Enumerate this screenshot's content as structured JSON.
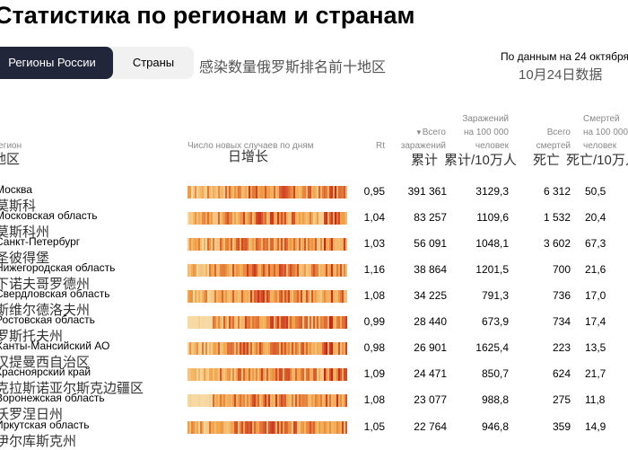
{
  "title": "Статистика по регионам и странам",
  "tabs": [
    {
      "label": "Регионы России",
      "active": true
    },
    {
      "label": "Страны",
      "active": false
    }
  ],
  "subtitle_zh": "感染数量俄罗斯排名前十地区",
  "as_of": {
    "ru": "По данным на 24 октября",
    "zh": "10月24日数据"
  },
  "columns": {
    "region_ru": "Регион",
    "region_zh": "地区",
    "daily_ru": "Число новых случаев по дням",
    "daily_zh": "日增长",
    "rt": "Rt",
    "total_ru": [
      "Всего",
      "заражений"
    ],
    "total_zh": "累计",
    "per100k_ru": [
      "Заражений",
      "на 100 000",
      "человек"
    ],
    "per100k_zh": "累计/10万人",
    "deaths_ru": [
      "Всего",
      "смертей"
    ],
    "deaths_zh": "死亡",
    "deaths_per100k_ru": [
      "Смертей",
      "на 100 000",
      "человек"
    ],
    "deaths_per100k_zh": "死亡/10万人"
  },
  "colors": {
    "heat_low": "#f7d9a3",
    "heat_mid": "#f2a54a",
    "heat_high": "#c6231c",
    "tab_active_bg": "#22263a",
    "tab_bg": "#f1f1f1"
  },
  "rows": [
    {
      "ru": "Москва",
      "zh": "莫斯科",
      "rt": "0,95",
      "total": "391 361",
      "per100k": "3129,3",
      "deaths": "6 312",
      "deaths_per100k": "50,5"
    },
    {
      "ru": "Московская область",
      "zh": "莫斯科州",
      "rt": "1,04",
      "total": "83 257",
      "per100k": "1109,6",
      "deaths": "1 532",
      "deaths_per100k": "20,4"
    },
    {
      "ru": "Санкт-Петербург",
      "zh": "圣彼得堡",
      "rt": "1,03",
      "total": "56 091",
      "per100k": "1048,1",
      "deaths": "3 602",
      "deaths_per100k": "67,3"
    },
    {
      "ru": "Нижегородская область",
      "zh": "下诺夫哥罗德州",
      "rt": "1,16",
      "total": "38 864",
      "per100k": "1201,5",
      "deaths": "700",
      "deaths_per100k": "21,6"
    },
    {
      "ru": "Свердловская область",
      "zh": "斯维尔德洛夫州",
      "rt": "1,08",
      "total": "34 225",
      "per100k": "791,3",
      "deaths": "736",
      "deaths_per100k": "17,0"
    },
    {
      "ru": "Ростовская область",
      "zh": "罗斯托夫州",
      "rt": "0,99",
      "total": "28 440",
      "per100k": "673,9",
      "deaths": "734",
      "deaths_per100k": "17,4"
    },
    {
      "ru": "Ханты-Мансийский АО",
      "zh": "汉提曼西自治区",
      "rt": "0,98",
      "total": "26 901",
      "per100k": "1625,4",
      "deaths": "223",
      "deaths_per100k": "13,5"
    },
    {
      "ru": "Красноярский край",
      "zh": "克拉斯诺亚尔斯克边疆区",
      "rt": "1,09",
      "total": "24 471",
      "per100k": "850,7",
      "deaths": "624",
      "deaths_per100k": "21,7"
    },
    {
      "ru": "Воронежская область",
      "zh": "沃罗涅日州",
      "rt": "1,08",
      "total": "23 077",
      "per100k": "988,8",
      "deaths": "275",
      "deaths_per100k": "11,8"
    },
    {
      "ru": "Иркутская область",
      "zh": "伊尔库斯克州",
      "rt": "1,05",
      "total": "22 764",
      "per100k": "946,8",
      "deaths": "359",
      "deaths_per100k": "14,9"
    }
  ]
}
